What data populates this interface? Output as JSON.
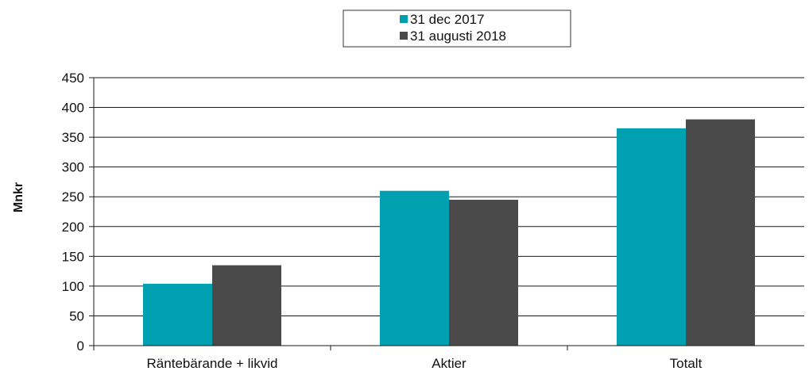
{
  "chart_data": {
    "type": "bar",
    "categories": [
      "Räntebärande + likvid",
      "Aktier",
      "Totalt"
    ],
    "series": [
      {
        "name": "31 dec 2017",
        "color": "#00A0B0",
        "values": [
          104,
          260,
          365
        ]
      },
      {
        "name": "31 augusti 2018",
        "color": "#4A4A4A",
        "values": [
          135,
          245,
          380
        ]
      }
    ],
    "ylabel": "Mnkr",
    "ylim": [
      0,
      450
    ],
    "yticks": [
      0,
      50,
      100,
      150,
      200,
      250,
      300,
      350,
      400,
      450
    ],
    "grid": true,
    "legend_position": "top-center"
  }
}
